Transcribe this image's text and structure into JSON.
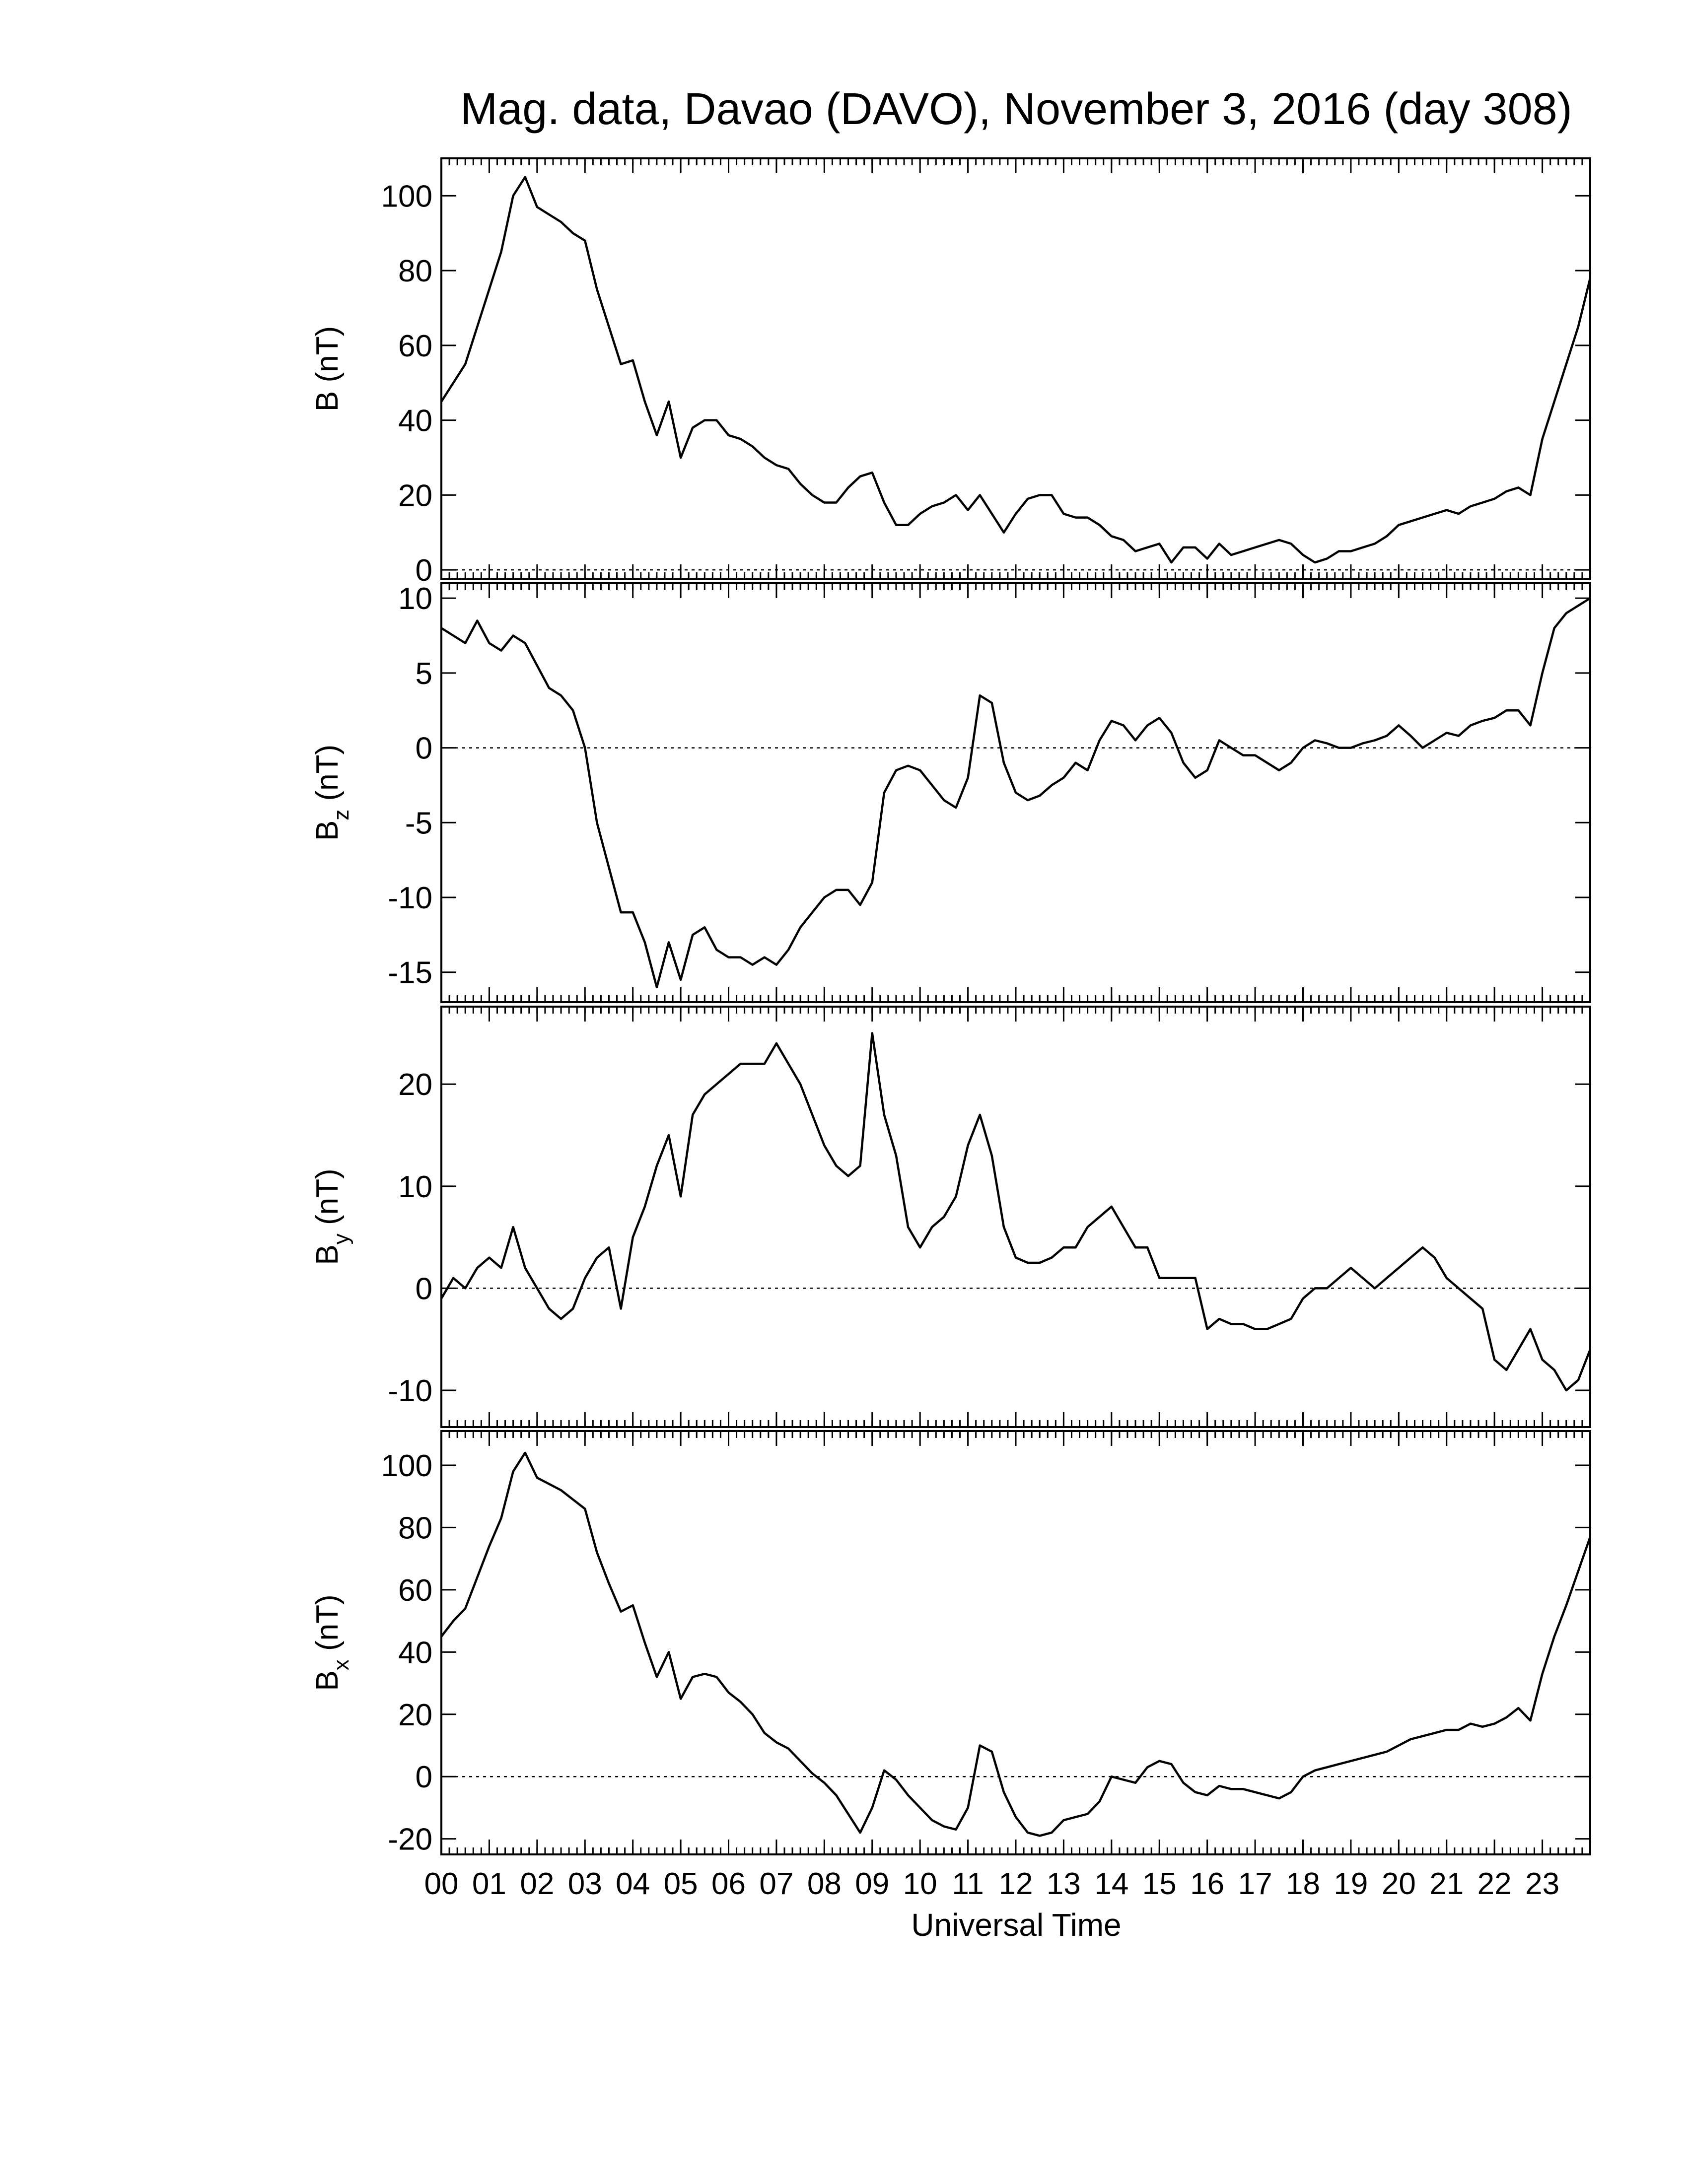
{
  "chart_data": {
    "type": "line",
    "title": "Mag. data, Davao (DAVO), November 3, 2016 (day 308)",
    "xlabel": "Universal Time",
    "xlim": [
      0,
      24
    ],
    "xticks": [
      {
        "value": 0,
        "label": "00"
      },
      {
        "value": 1,
        "label": "01"
      },
      {
        "value": 2,
        "label": "02"
      },
      {
        "value": 3,
        "label": "03"
      },
      {
        "value": 4,
        "label": "04"
      },
      {
        "value": 5,
        "label": "05"
      },
      {
        "value": 6,
        "label": "06"
      },
      {
        "value": 7,
        "label": "07"
      },
      {
        "value": 8,
        "label": "08"
      },
      {
        "value": 9,
        "label": "09"
      },
      10,
      11,
      12,
      13,
      14,
      15,
      16,
      17,
      18,
      19,
      20,
      21,
      22,
      23
    ],
    "color": "#000000",
    "x": [
      0,
      0.25,
      0.5,
      0.75,
      1,
      1.25,
      1.5,
      1.75,
      2,
      2.25,
      2.5,
      2.75,
      3,
      3.25,
      3.5,
      3.75,
      4,
      4.25,
      4.5,
      4.75,
      5,
      5.25,
      5.5,
      5.75,
      6,
      6.25,
      6.5,
      6.75,
      7,
      7.25,
      7.5,
      7.75,
      8,
      8.25,
      8.5,
      8.75,
      9,
      9.25,
      9.5,
      9.75,
      10,
      10.25,
      10.5,
      10.75,
      11,
      11.25,
      11.5,
      11.75,
      12,
      12.25,
      12.5,
      12.75,
      13,
      13.25,
      13.5,
      13.75,
      14,
      14.25,
      14.5,
      14.75,
      15,
      15.25,
      15.5,
      15.75,
      16,
      16.25,
      16.5,
      16.75,
      17,
      17.25,
      17.5,
      17.75,
      18,
      18.25,
      18.5,
      18.75,
      19,
      19.25,
      19.5,
      19.75,
      20,
      20.25,
      20.5,
      20.75,
      21,
      21.25,
      21.5,
      21.75,
      22,
      22.25,
      22.5,
      22.75,
      23,
      23.25,
      23.5,
      23.75,
      24
    ],
    "panels": [
      {
        "ylabel": "B",
        "ylabel_unit": "(nT)",
        "ylim": [
          -2.5,
          110
        ],
        "yticks": [
          0,
          20,
          40,
          60,
          80,
          100
        ],
        "hline": 0,
        "values": [
          45,
          50,
          55,
          65,
          75,
          85,
          100,
          105,
          97,
          95,
          93,
          90,
          88,
          75,
          65,
          55,
          56,
          45,
          36,
          45,
          30,
          38,
          40,
          40,
          36,
          35,
          33,
          30,
          28,
          27,
          23,
          20,
          18,
          18,
          22,
          25,
          26,
          18,
          12,
          12,
          15,
          17,
          18,
          20,
          16,
          20,
          15,
          10,
          15,
          19,
          20,
          20,
          15,
          14,
          14,
          12,
          9,
          8,
          5,
          6,
          7,
          2,
          6,
          6,
          3,
          7,
          4,
          5,
          6,
          7,
          8,
          7,
          4,
          2,
          3,
          5,
          5,
          6,
          7,
          9,
          12,
          13,
          14,
          15,
          16,
          15,
          17,
          18,
          19,
          21,
          22,
          20,
          35,
          45,
          55,
          65,
          78
        ]
      },
      {
        "ylabel": "B",
        "ylabel_sub": "z",
        "ylabel_unit": "(nT)",
        "ylim": [
          -17,
          11
        ],
        "yticks": [
          -15,
          -10,
          -5,
          0,
          5,
          10
        ],
        "hline": 0,
        "values": [
          8,
          7.5,
          7,
          8.5,
          7,
          6.5,
          7.5,
          7,
          5.5,
          4,
          3.5,
          2.5,
          0,
          -5,
          -8,
          -11,
          -11,
          -13,
          -16,
          -13,
          -15.5,
          -12.5,
          -12,
          -13.5,
          -14,
          -14,
          -14.5,
          -14,
          -14.5,
          -13.5,
          -12,
          -11,
          -10,
          -9.5,
          -9.5,
          -10.5,
          -9,
          -3,
          -1.5,
          -1.2,
          -1.5,
          -2.5,
          -3.5,
          -4,
          -2,
          3.5,
          3,
          -1,
          -3,
          -3.5,
          -3.2,
          -2.5,
          -2,
          -1,
          -1.5,
          0.5,
          1.8,
          1.5,
          0.5,
          1.5,
          2,
          1,
          -1,
          -2,
          -1.5,
          0.5,
          0,
          -0.5,
          -0.5,
          -1,
          -1.5,
          -1,
          0,
          0.5,
          0.3,
          0,
          0,
          0.3,
          0.5,
          0.8,
          1.5,
          0.8,
          0,
          0.5,
          1,
          0.8,
          1.5,
          1.8,
          2,
          2.5,
          2.5,
          1.5,
          5,
          8,
          9,
          9.5,
          10
        ]
      },
      {
        "ylabel": "B",
        "ylabel_sub": "y",
        "ylabel_unit": "(nT)",
        "ylim": [
          -13.6,
          27.6
        ],
        "yticks": [
          -10,
          0,
          10,
          20
        ],
        "hline": 0,
        "values": [
          -1,
          1,
          0,
          2,
          3,
          2,
          6,
          2,
          0,
          -2,
          -3,
          -2,
          1,
          3,
          4,
          -2,
          5,
          8,
          12,
          15,
          9,
          17,
          19,
          20,
          21,
          22,
          22,
          22,
          24,
          22,
          20,
          17,
          14,
          12,
          11,
          12,
          25,
          17,
          13,
          6,
          4,
          6,
          7,
          9,
          14,
          17,
          13,
          6,
          3,
          2.5,
          2.5,
          3,
          4,
          4,
          6,
          7,
          8,
          6,
          4,
          4,
          1,
          1,
          1,
          1,
          -4,
          -3,
          -3.5,
          -3.5,
          -4,
          -4,
          -3.5,
          -3,
          -1,
          0,
          0,
          1,
          2,
          1,
          0,
          1,
          2,
          3,
          4,
          3,
          1,
          0,
          -1,
          -2,
          -7,
          -8,
          -6,
          -4,
          -7,
          -8,
          -10,
          -9,
          -6
        ]
      },
      {
        "ylabel": "B",
        "ylabel_sub": "x",
        "ylabel_unit": "(nT)",
        "ylim": [
          -25,
          111
        ],
        "yticks": [
          -20,
          0,
          20,
          40,
          60,
          80,
          100
        ],
        "hline": 0,
        "values": [
          45,
          50,
          54,
          64,
          74,
          83,
          98,
          104,
          96,
          94,
          92,
          89,
          86,
          72,
          62,
          53,
          55,
          43,
          32,
          40,
          25,
          32,
          33,
          32,
          27,
          24,
          20,
          14,
          11,
          9,
          5,
          1,
          -2,
          -6,
          -12,
          -18,
          -10,
          2,
          -1,
          -6,
          -10,
          -14,
          -16,
          -17,
          -10,
          10,
          8,
          -5,
          -13,
          -18,
          -19,
          -18,
          -14,
          -13,
          -12,
          -8,
          0,
          -1,
          -2,
          3,
          5,
          4,
          -2,
          -5,
          -6,
          -3,
          -4,
          -4,
          -5,
          -6,
          -7,
          -5,
          0,
          2,
          3,
          4,
          5,
          6,
          7,
          8,
          10,
          12,
          13,
          14,
          15,
          15,
          17,
          16,
          17,
          19,
          22,
          18,
          33,
          45,
          55,
          66,
          77
        ]
      }
    ]
  }
}
